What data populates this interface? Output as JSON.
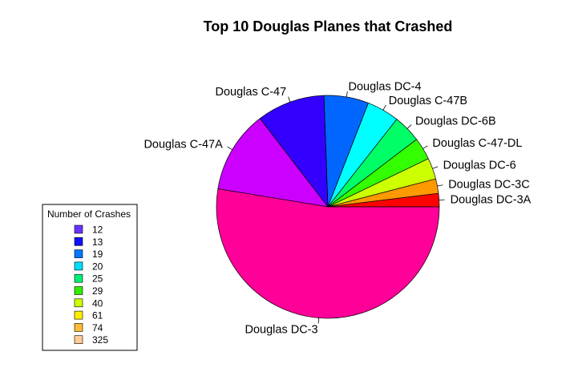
{
  "chart_data": {
    "type": "pie",
    "title": "Top 10 Douglas Planes that Crashed",
    "slices": [
      {
        "label": "Douglas DC-3A",
        "value": 12,
        "color": "#ff0000"
      },
      {
        "label": "Douglas DC-3C",
        "value": 13,
        "color": "#ff9900"
      },
      {
        "label": "Douglas DC-6",
        "value": 19,
        "color": "#ccff00"
      },
      {
        "label": "Douglas C-47-DL",
        "value": 20,
        "color": "#33ff00"
      },
      {
        "label": "Douglas DC-6B",
        "value": 25,
        "color": "#00ff66"
      },
      {
        "label": "Douglas C-47B",
        "value": 29,
        "color": "#00ffff"
      },
      {
        "label": "Douglas DC-4",
        "value": 40,
        "color": "#0066ff"
      },
      {
        "label": "Douglas C-47",
        "value": 61,
        "color": "#3300ff"
      },
      {
        "label": "Douglas C-47A",
        "value": 74,
        "color": "#cc00ff"
      },
      {
        "label": "Douglas DC-3",
        "value": 325,
        "color": "#ff0099"
      }
    ],
    "legend": {
      "title": "Number of Crashes",
      "placement": "bottom-left",
      "entries": [
        {
          "label": "12",
          "color": "#6633ff"
        },
        {
          "label": "13",
          "color": "#1111ff"
        },
        {
          "label": "19",
          "color": "#0077ff"
        },
        {
          "label": "20",
          "color": "#00ddff"
        },
        {
          "label": "25",
          "color": "#00ee77"
        },
        {
          "label": "29",
          "color": "#33ee00"
        },
        {
          "label": "40",
          "color": "#ccff00"
        },
        {
          "label": "61",
          "color": "#ffee00"
        },
        {
          "label": "74",
          "color": "#ffbb33"
        },
        {
          "label": "325",
          "color": "#ffcc99"
        }
      ]
    }
  }
}
